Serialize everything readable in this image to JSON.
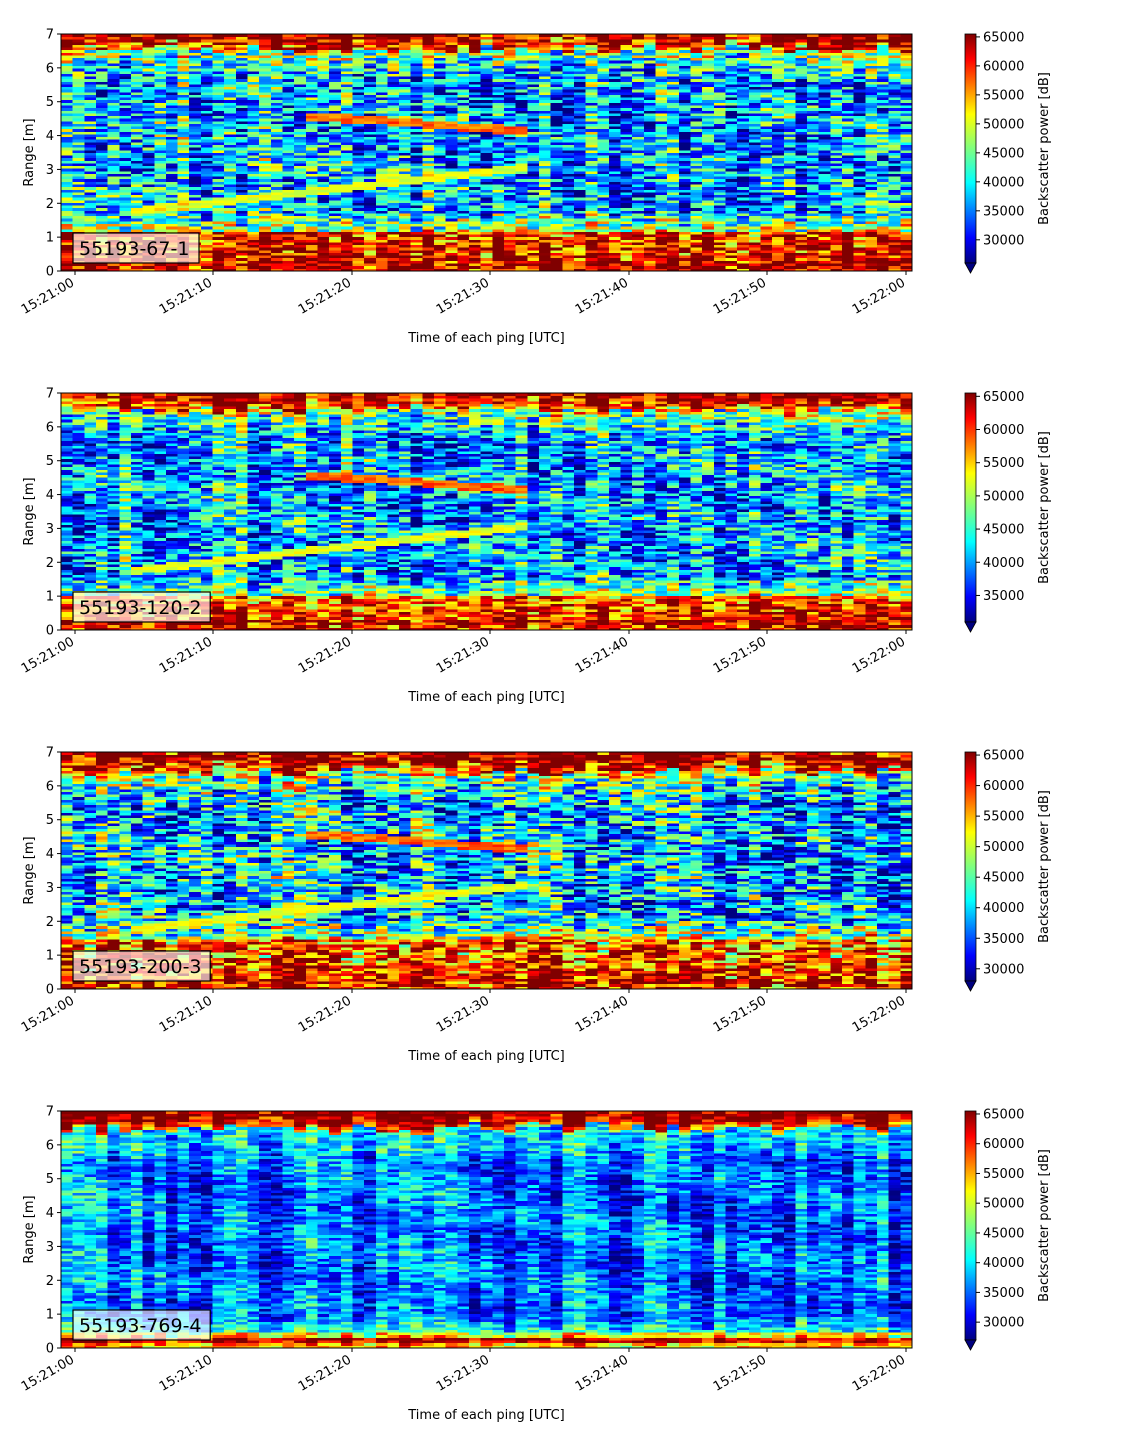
{
  "chart_data": [
    {
      "type": "heatmap",
      "label": "55193-67-1",
      "xlabel": "Time of each ping [UTC]",
      "ylabel": "Range [m]",
      "colorbar_label": "Backscatter power [dB]",
      "colormap": "jet",
      "colorbar_range": [
        26000,
        65500
      ],
      "colorbar_ticks": [
        "30000",
        "35000",
        "40000",
        "45000",
        "50000",
        "55000",
        "60000",
        "65000"
      ],
      "x_ticks": [
        "15:21:00",
        "15:21:10",
        "15:21:20",
        "15:21:30",
        "15:21:40",
        "15:21:50",
        "15:22:00"
      ],
      "y_ticks": [
        "0",
        "1",
        "2",
        "3",
        "4",
        "5",
        "6",
        "7"
      ],
      "ylim": [
        0,
        7
      ],
      "features": {
        "bottom_strength": 1.0,
        "band_strength": 0.45,
        "bottom_edge": 1.2,
        "surface_top": 6.55,
        "noise": 0.55,
        "tracks": true
      }
    },
    {
      "type": "heatmap",
      "label": "55193-120-2",
      "xlabel": "Time of each ping [UTC]",
      "ylabel": "Range [m]",
      "colorbar_label": "Backscatter power [dB]",
      "colormap": "jet",
      "colorbar_range": [
        31000,
        65500
      ],
      "colorbar_ticks": [
        "35000",
        "40000",
        "45000",
        "50000",
        "55000",
        "60000",
        "65000"
      ],
      "x_ticks": [
        "15:21:00",
        "15:21:10",
        "15:21:20",
        "15:21:30",
        "15:21:40",
        "15:21:50",
        "15:22:00"
      ],
      "y_ticks": [
        "0",
        "1",
        "2",
        "3",
        "4",
        "5",
        "6",
        "7"
      ],
      "ylim": [
        0,
        7
      ],
      "features": {
        "bottom_strength": 0.85,
        "band_strength": 0.4,
        "bottom_edge": 1.0,
        "surface_top": 6.5,
        "noise": 0.5,
        "tracks": true
      }
    },
    {
      "type": "heatmap",
      "label": "55193-200-3",
      "xlabel": "Time of each ping [UTC]",
      "ylabel": "Range [m]",
      "colorbar_label": "Backscatter power [dB]",
      "colormap": "jet",
      "colorbar_range": [
        28000,
        65500
      ],
      "colorbar_ticks": [
        "30000",
        "35000",
        "40000",
        "45000",
        "50000",
        "55000",
        "60000",
        "65000"
      ],
      "x_ticks": [
        "15:21:00",
        "15:21:10",
        "15:21:20",
        "15:21:30",
        "15:21:40",
        "15:21:50",
        "15:22:00"
      ],
      "y_ticks": [
        "0",
        "1",
        "2",
        "3",
        "4",
        "5",
        "6",
        "7"
      ],
      "ylim": [
        0,
        7
      ],
      "features": {
        "bottom_strength": 0.8,
        "band_strength": 0.45,
        "bottom_edge": 1.5,
        "surface_top": 6.4,
        "noise": 0.6,
        "tracks": true
      }
    },
    {
      "type": "heatmap",
      "label": "55193-769-4",
      "xlabel": "Time of each ping [UTC]",
      "ylabel": "Range [m]",
      "colorbar_label": "Backscatter power [dB]",
      "colormap": "jet",
      "colorbar_range": [
        27000,
        65500
      ],
      "colorbar_ticks": [
        "30000",
        "35000",
        "40000",
        "45000",
        "50000",
        "55000",
        "60000",
        "65000"
      ],
      "x_ticks": [
        "15:21:00",
        "15:21:10",
        "15:21:20",
        "15:21:30",
        "15:21:40",
        "15:21:50",
        "15:22:00"
      ],
      "y_ticks": [
        "0",
        "1",
        "2",
        "3",
        "4",
        "5",
        "6",
        "7"
      ],
      "ylim": [
        0,
        7
      ],
      "features": {
        "bottom_strength": 0.35,
        "band_strength": 0.1,
        "bottom_edge": 0.5,
        "surface_top": 6.5,
        "noise": 0.3,
        "tracks": false
      }
    }
  ]
}
